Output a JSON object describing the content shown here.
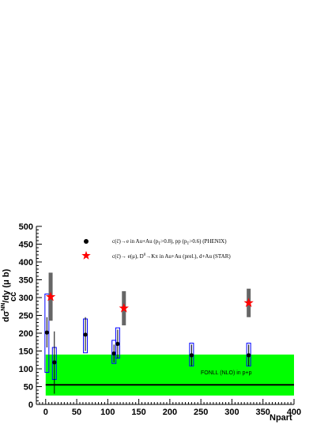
{
  "chart_data": {
    "type": "scatter",
    "xlabel": "Npart",
    "ylabel": "dσ",
    "ylabel_sup": "NN",
    "ylabel_sub": "cc̄",
    "ylabel_tail": "/dy (μ b)",
    "xlim": [
      -15,
      400
    ],
    "ylim": [
      0,
      500
    ],
    "x_ticks": [
      0,
      50,
      100,
      150,
      200,
      250,
      300,
      350,
      400
    ],
    "y_ticks": [
      0,
      50,
      100,
      150,
      200,
      250,
      300,
      350,
      400,
      450,
      500
    ],
    "grid": false,
    "legend_position": "top-center",
    "band": {
      "name": "FONLL (NLO) in p+p",
      "y_low": 25,
      "y_high": 140,
      "central": 55,
      "color": "#00ff00"
    },
    "series": [
      {
        "name": "c(c̄)→e in Au+Au (pT>0.8), pp (pT>0.6) (PHENIX)",
        "legend_parts": [
          "c(c̄)→e in Au+Au (p",
          "T",
          ">0.8), pp (p",
          "T",
          ">0.6)  (PHENIX)"
        ],
        "marker": "circle",
        "color": "#000000",
        "points": [
          {
            "x": 2,
            "y": 202,
            "stat_low": 160,
            "stat_high": 245,
            "sys_low": 90,
            "sys_high": 310
          },
          {
            "x": 14,
            "y": 118,
            "stat_low": 30,
            "stat_high": 205,
            "sys_low": 70,
            "sys_high": 160
          },
          {
            "x": 64,
            "y": 196,
            "stat_low": 150,
            "stat_high": 245,
            "sys_low": 145,
            "sys_high": 240
          },
          {
            "x": 110,
            "y": 143,
            "stat_low": 118,
            "stat_high": 168,
            "sys_low": 115,
            "sys_high": 180
          },
          {
            "x": 116,
            "y": 170,
            "stat_low": 130,
            "stat_high": 210,
            "sys_low": 130,
            "sys_high": 215
          },
          {
            "x": 235,
            "y": 138,
            "stat_low": 108,
            "stat_high": 168,
            "sys_low": 108,
            "sys_high": 172
          },
          {
            "x": 327,
            "y": 138,
            "stat_low": 108,
            "stat_high": 168,
            "sys_low": 108,
            "sys_high": 172
          }
        ]
      },
      {
        "name": "c(c̄)→e(μ), D0→Kπ in Au+Au (prel.), d+Au (STAR)",
        "legend_parts": [
          "c(c̄)→ e(μ), D",
          "0",
          "→Kπ in Au+Au (prel.), d+Au (STAR)"
        ],
        "marker": "star",
        "color": "#ff0000",
        "points": [
          {
            "x": 8,
            "y": 302,
            "sys_low": 235,
            "sys_high": 370
          },
          {
            "x": 126,
            "y": 270,
            "sys_low": 222,
            "sys_high": 318
          },
          {
            "x": 327,
            "y": 285,
            "sys_low": 245,
            "sys_high": 325
          }
        ]
      }
    ]
  }
}
